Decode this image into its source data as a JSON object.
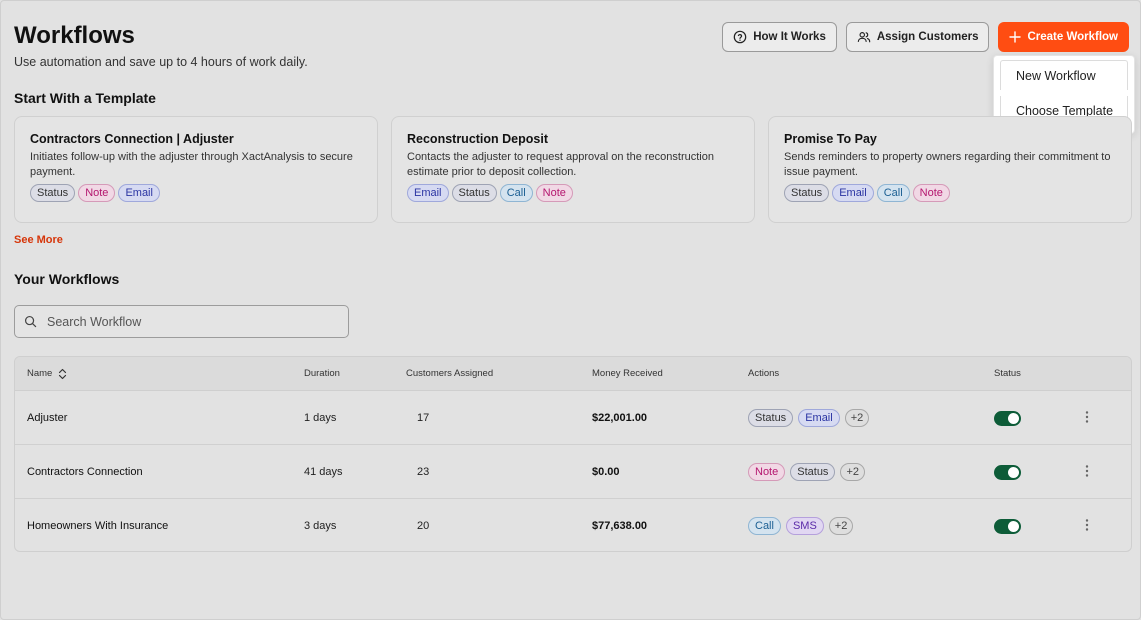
{
  "header": {
    "title": "Workflows",
    "subtitle": "Use automation and save up to 4 hours of work daily.",
    "how_it_works": "How It Works",
    "assign_customers": "Assign Customers",
    "create_workflow": "Create Workflow"
  },
  "dropdown": {
    "items": [
      "New Workflow",
      "Choose Template"
    ]
  },
  "templates_section": {
    "title": "Start With a Template",
    "see_more": "See More",
    "cards": [
      {
        "title": "Contractors Connection | Adjuster",
        "description": "Initiates follow-up with the adjuster through XactAnalysis to secure payment.",
        "tags": [
          "Status",
          "Note",
          "Email"
        ]
      },
      {
        "title": "Reconstruction Deposit",
        "description": "Contacts the adjuster to request approval on the reconstruction estimate prior to deposit collection.",
        "tags": [
          "Email",
          "Status",
          "Call",
          "Note"
        ]
      },
      {
        "title": "Promise To Pay",
        "description": "Sends reminders to property owners regarding their commitment to issue payment.",
        "tags": [
          "Status",
          "Email",
          "Call",
          "Note"
        ]
      }
    ]
  },
  "workflows_section": {
    "title": "Your Workflows",
    "search_placeholder": "Search Workflow",
    "columns": [
      "Name",
      "Duration",
      "Customers Assigned",
      "Money Received",
      "Actions",
      "Status"
    ],
    "rows": [
      {
        "name": "Adjuster",
        "duration": "1 days",
        "customers": "17",
        "money": "$22,001.00",
        "tags": [
          "Status",
          "Email"
        ],
        "more": "+2",
        "status": "on"
      },
      {
        "name": "Contractors Connection",
        "duration": "41 days",
        "customers": "23",
        "money": "$0.00",
        "tags": [
          "Note",
          "Status"
        ],
        "more": "+2",
        "status": "on"
      },
      {
        "name": "Homeowners With Insurance",
        "duration": "3 days",
        "customers": "20",
        "money": "$77,638.00",
        "tags": [
          "Call",
          "SMS"
        ],
        "more": "+2",
        "status": "on"
      }
    ]
  },
  "colors": {
    "primary": "#ff4d12",
    "toggle_on": "#0d5c38",
    "link": "#d6360a"
  }
}
